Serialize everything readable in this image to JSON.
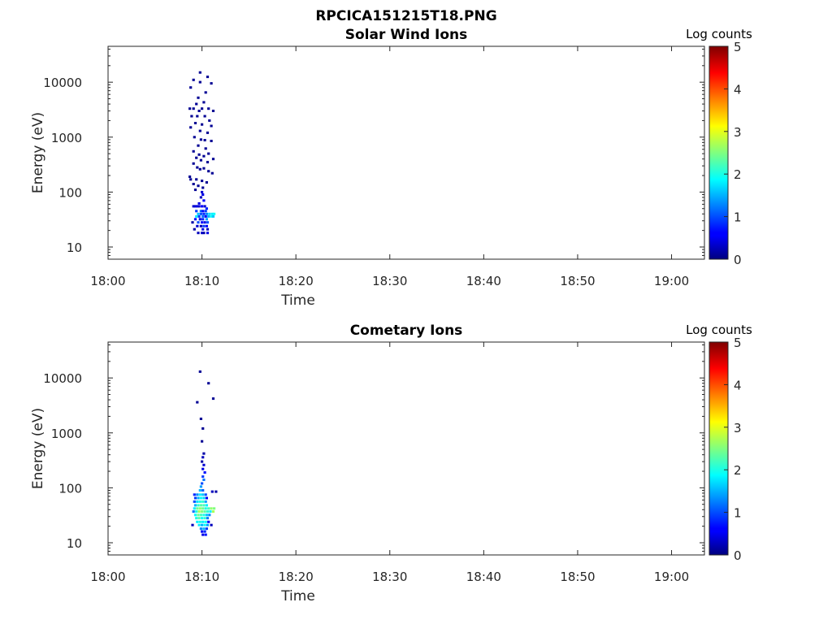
{
  "figure": {
    "title": "RPCICA151215T18.PNG"
  },
  "chart_data": [
    {
      "type": "heatmap",
      "title": "Solar Wind Ions",
      "xlabel": "Time",
      "ylabel": "Energy (eV)",
      "x_ticks": [
        "18:00",
        "18:10",
        "18:20",
        "18:30",
        "18:40",
        "18:50",
        "19:00"
      ],
      "x_range_minutes": [
        0,
        63.5
      ],
      "y_scale": "log",
      "y_range": [
        6,
        45000
      ],
      "y_ticks": [
        10,
        100,
        1000,
        10000
      ],
      "y_tick_labels": [
        "10",
        "100",
        "1000",
        "10000"
      ],
      "grid": false,
      "colorbar": {
        "title": "Log counts",
        "range": [
          0,
          5
        ],
        "ticks": [
          "0",
          "1",
          "2",
          "3",
          "4",
          "5"
        ],
        "colormap": "jet"
      },
      "cells": [
        [
          9.8,
          15000,
          0.1
        ],
        [
          10.6,
          12500,
          0.1
        ],
        [
          9.1,
          11000,
          0.1
        ],
        [
          9.8,
          10000,
          0.1
        ],
        [
          11.0,
          9500,
          0.1
        ],
        [
          8.8,
          8000,
          0.1
        ],
        [
          10.4,
          6500,
          0.1
        ],
        [
          9.6,
          5200,
          0.1
        ],
        [
          10.2,
          4300,
          0.1
        ],
        [
          9.4,
          4000,
          0.1
        ],
        [
          8.7,
          3300,
          0.1
        ],
        [
          9.1,
          3300,
          0.1
        ],
        [
          10.0,
          3300,
          0.1
        ],
        [
          10.7,
          3300,
          0.1
        ],
        [
          11.2,
          3000,
          0.1
        ],
        [
          9.7,
          3000,
          0.1
        ],
        [
          8.9,
          2400,
          0.1
        ],
        [
          9.5,
          2400,
          0.1
        ],
        [
          10.3,
          2400,
          0.1
        ],
        [
          10.8,
          2000,
          0.1
        ],
        [
          9.3,
          1800,
          0.1
        ],
        [
          10.0,
          1700,
          0.1
        ],
        [
          11.0,
          1600,
          0.1
        ],
        [
          8.8,
          1500,
          0.1
        ],
        [
          9.8,
          1300,
          0.1
        ],
        [
          10.6,
          1200,
          0.1
        ],
        [
          9.2,
          1000,
          0.1
        ],
        [
          9.9,
          900,
          0.1
        ],
        [
          10.3,
          880,
          0.1
        ],
        [
          11.0,
          850,
          0.1
        ],
        [
          9.6,
          700,
          0.1
        ],
        [
          10.4,
          620,
          0.1
        ],
        [
          9.1,
          550,
          0.1
        ],
        [
          10.7,
          500,
          0.1
        ],
        [
          9.7,
          480,
          0.1
        ],
        [
          10.2,
          450,
          0.1
        ],
        [
          9.4,
          420,
          0.1
        ],
        [
          11.2,
          400,
          0.1
        ],
        [
          9.9,
          380,
          0.1
        ],
        [
          10.6,
          350,
          0.1
        ],
        [
          9.1,
          330,
          0.1
        ],
        [
          9.5,
          280,
          0.1
        ],
        [
          10.2,
          270,
          0.1
        ],
        [
          9.8,
          260,
          0.1
        ],
        [
          10.7,
          240,
          0.1
        ],
        [
          11.1,
          220,
          0.1
        ],
        [
          8.7,
          190,
          0.1
        ],
        [
          8.8,
          170,
          0.1
        ],
        [
          9.4,
          170,
          0.1
        ],
        [
          10.0,
          160,
          0.1
        ],
        [
          10.5,
          150,
          0.1
        ],
        [
          9.1,
          140,
          0.1
        ],
        [
          9.6,
          130,
          0.1
        ],
        [
          10.1,
          120,
          0.1
        ],
        [
          9.3,
          110,
          0.1
        ],
        [
          10.0,
          100,
          0.4
        ],
        [
          10.1,
          90,
          0.5
        ],
        [
          9.9,
          80,
          0.3
        ],
        [
          10.2,
          70,
          0.6
        ],
        [
          9.7,
          62,
          0.5
        ],
        [
          9.1,
          55,
          0.4
        ],
        [
          9.3,
          55,
          0.4
        ],
        [
          9.5,
          55,
          0.5
        ],
        [
          9.7,
          55,
          0.4
        ],
        [
          10.0,
          55,
          0.6
        ],
        [
          10.3,
          55,
          0.4
        ],
        [
          10.5,
          50,
          0.8
        ],
        [
          9.4,
          45,
          0.9
        ],
        [
          9.9,
          45,
          1.1
        ],
        [
          10.1,
          45,
          0.7
        ],
        [
          10.4,
          45,
          0.9
        ],
        [
          9.6,
          40,
          1.6
        ],
        [
          9.9,
          40,
          1.0
        ],
        [
          10.2,
          40,
          0.8
        ],
        [
          10.5,
          40,
          1.3
        ],
        [
          10.8,
          40,
          1.7
        ],
        [
          11.1,
          40,
          1.8
        ],
        [
          11.3,
          40,
          1.9
        ],
        [
          9.4,
          36,
          1.8
        ],
        [
          9.7,
          36,
          0.9
        ],
        [
          10.1,
          36,
          1.2
        ],
        [
          10.4,
          36,
          0.6
        ],
        [
          10.7,
          36,
          1.5
        ],
        [
          11.0,
          36,
          1.9
        ],
        [
          11.2,
          36,
          1.6
        ],
        [
          9.3,
          32,
          0.7
        ],
        [
          9.8,
          32,
          0.5
        ],
        [
          10.1,
          32,
          0.8
        ],
        [
          10.5,
          32,
          1.4
        ],
        [
          9.0,
          28,
          0.2
        ],
        [
          9.6,
          28,
          1.0
        ],
        [
          10.0,
          28,
          0.7
        ],
        [
          10.3,
          28,
          0.5
        ],
        [
          10.6,
          28,
          1.0
        ],
        [
          9.5,
          24,
          0.4
        ],
        [
          9.9,
          24,
          0.3
        ],
        [
          10.2,
          24,
          0.9
        ],
        [
          10.5,
          24,
          0.6
        ],
        [
          9.2,
          21,
          0.2
        ],
        [
          10.1,
          21,
          0.5
        ],
        [
          10.6,
          21,
          0.3
        ],
        [
          9.6,
          18,
          0.3
        ],
        [
          10.0,
          18,
          0.4
        ],
        [
          10.2,
          18,
          0.2
        ],
        [
          10.6,
          18,
          0.5
        ]
      ]
    },
    {
      "type": "heatmap",
      "title": "Cometary Ions",
      "xlabel": "Time",
      "ylabel": "Energy (eV)",
      "x_ticks": [
        "18:00",
        "18:10",
        "18:20",
        "18:30",
        "18:40",
        "18:50",
        "19:00"
      ],
      "x_range_minutes": [
        0,
        63.5
      ],
      "y_scale": "log",
      "y_range": [
        6,
        45000
      ],
      "y_ticks": [
        10,
        100,
        1000,
        10000
      ],
      "y_tick_labels": [
        "10",
        "100",
        "1000",
        "10000"
      ],
      "grid": false,
      "colorbar": {
        "title": "Log counts",
        "range": [
          0,
          5
        ],
        "ticks": [
          "0",
          "1",
          "2",
          "3",
          "4",
          "5"
        ],
        "colormap": "jet"
      },
      "cells": [
        [
          9.8,
          13000,
          0.1
        ],
        [
          10.7,
          8000,
          0.1
        ],
        [
          11.2,
          4200,
          0.1
        ],
        [
          9.5,
          3600,
          0.1
        ],
        [
          9.9,
          1800,
          0.1
        ],
        [
          10.1,
          1200,
          0.1
        ],
        [
          10.0,
          700,
          0.1
        ],
        [
          10.2,
          420,
          0.2
        ],
        [
          10.1,
          360,
          0.3
        ],
        [
          10.0,
          300,
          0.2
        ],
        [
          10.2,
          260,
          0.4
        ],
        [
          10.1,
          220,
          0.5
        ],
        [
          10.3,
          190,
          0.7
        ],
        [
          10.1,
          160,
          0.9
        ],
        [
          10.2,
          140,
          1.2
        ],
        [
          10.0,
          120,
          1.0
        ],
        [
          9.9,
          105,
          1.4
        ],
        [
          9.8,
          90,
          1.5
        ],
        [
          10.1,
          90,
          1.1
        ],
        [
          11.1,
          85,
          0.3
        ],
        [
          11.5,
          85,
          0.2
        ],
        [
          9.2,
          75,
          0.8
        ],
        [
          9.5,
          75,
          1.3
        ],
        [
          9.8,
          75,
          1.8
        ],
        [
          10.1,
          75,
          1.6
        ],
        [
          10.4,
          75,
          1.0
        ],
        [
          9.3,
          65,
          0.9
        ],
        [
          9.6,
          65,
          1.5
        ],
        [
          9.9,
          65,
          1.9
        ],
        [
          10.2,
          65,
          1.7
        ],
        [
          10.5,
          65,
          0.6
        ],
        [
          9.2,
          56,
          1.0
        ],
        [
          9.5,
          56,
          1.7
        ],
        [
          9.8,
          56,
          2.0
        ],
        [
          10.1,
          56,
          2.1
        ],
        [
          10.4,
          56,
          1.4
        ],
        [
          9.3,
          48,
          1.5
        ],
        [
          9.6,
          48,
          2.1
        ],
        [
          9.9,
          48,
          2.3
        ],
        [
          10.2,
          48,
          2.2
        ],
        [
          10.5,
          48,
          1.8
        ],
        [
          9.2,
          42,
          1.8
        ],
        [
          9.5,
          42,
          2.4
        ],
        [
          9.8,
          42,
          2.6
        ],
        [
          10.1,
          42,
          2.4
        ],
        [
          10.4,
          42,
          2.0
        ],
        [
          10.7,
          42,
          2.2
        ],
        [
          11.0,
          42,
          2.6
        ],
        [
          11.3,
          42,
          2.5
        ],
        [
          9.1,
          37,
          1.2
        ],
        [
          9.4,
          37,
          2.0
        ],
        [
          9.7,
          37,
          2.7
        ],
        [
          10.0,
          37,
          2.5
        ],
        [
          10.3,
          37,
          2.3
        ],
        [
          10.6,
          37,
          2.1
        ],
        [
          10.9,
          37,
          1.8
        ],
        [
          11.2,
          37,
          2.7
        ],
        [
          9.3,
          32,
          1.9
        ],
        [
          9.6,
          32,
          2.4
        ],
        [
          9.9,
          32,
          2.2
        ],
        [
          10.2,
          32,
          2.0
        ],
        [
          10.5,
          32,
          1.6
        ],
        [
          10.8,
          32,
          1.3
        ],
        [
          9.4,
          28,
          2.0
        ],
        [
          9.7,
          28,
          2.3
        ],
        [
          10.0,
          28,
          1.9
        ],
        [
          10.3,
          28,
          2.1
        ],
        [
          10.6,
          28,
          1.2
        ],
        [
          9.5,
          24,
          1.8
        ],
        [
          9.8,
          24,
          2.0
        ],
        [
          10.1,
          24,
          1.8
        ],
        [
          10.4,
          24,
          1.9
        ],
        [
          10.7,
          24,
          0.6
        ],
        [
          9.0,
          21,
          0.3
        ],
        [
          9.7,
          21,
          1.8
        ],
        [
          10.0,
          21,
          1.5
        ],
        [
          10.3,
          21,
          1.9
        ],
        [
          10.6,
          21,
          1.4
        ],
        [
          11.0,
          21,
          0.3
        ],
        [
          9.9,
          18,
          1.3
        ],
        [
          10.2,
          18,
          1.5
        ],
        [
          10.5,
          18,
          0.9
        ],
        [
          10.0,
          16,
          0.6
        ],
        [
          10.3,
          16,
          0.8
        ],
        [
          10.1,
          14,
          0.5
        ],
        [
          10.4,
          14,
          0.7
        ]
      ]
    }
  ]
}
